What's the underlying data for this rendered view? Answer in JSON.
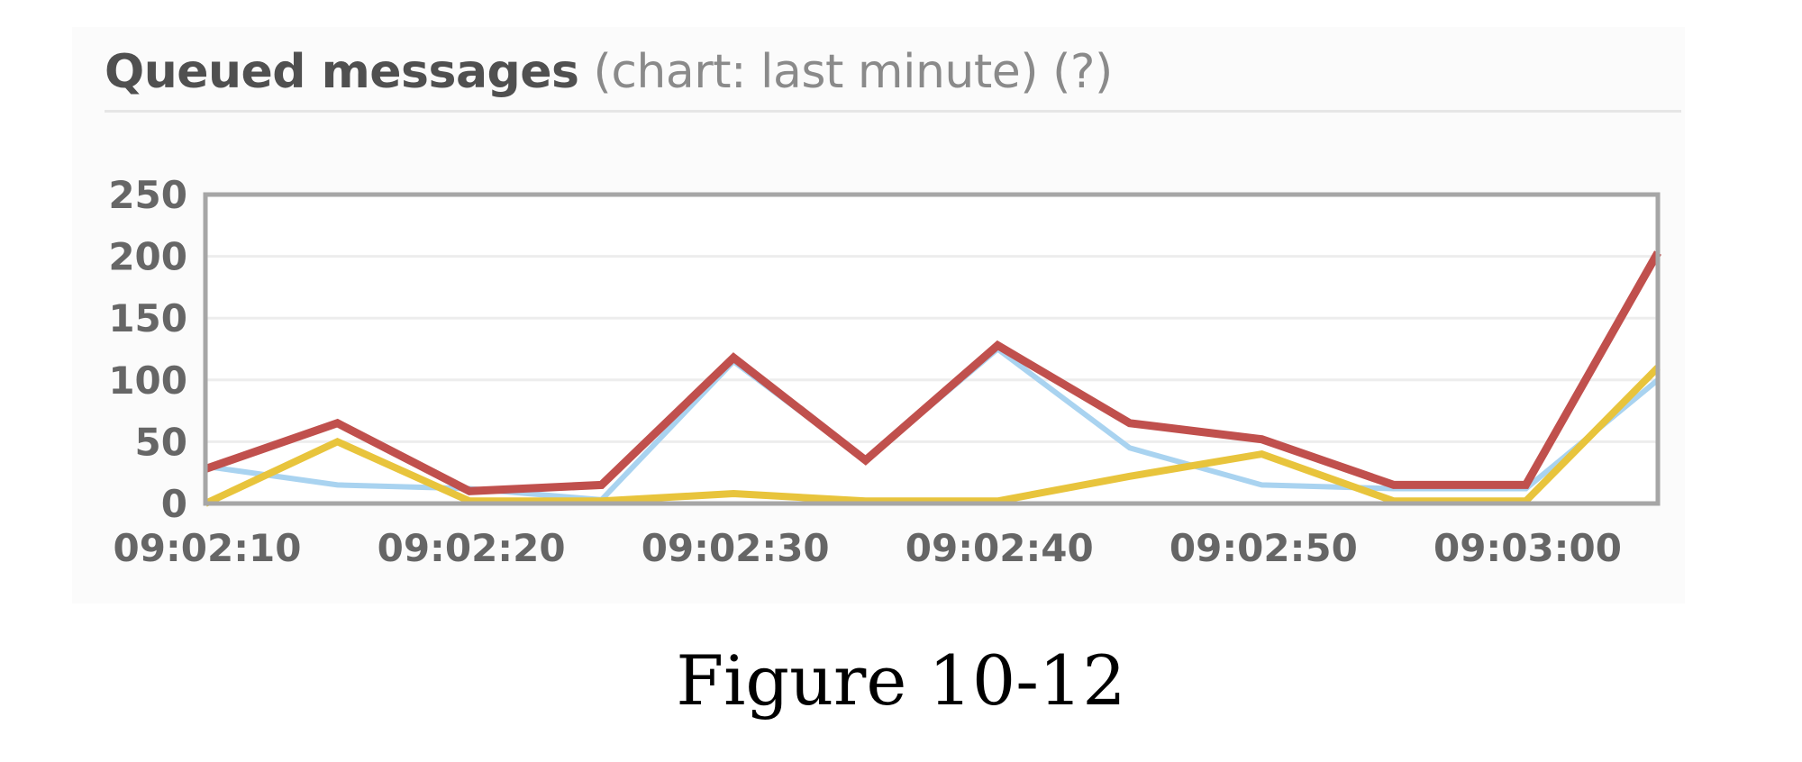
{
  "heading": {
    "main": "Queued messages",
    "sub": "(chart: last minute) (?)"
  },
  "caption": "Figure 10-12",
  "chart_data": {
    "type": "line",
    "title": "",
    "xlabel": "",
    "ylabel": "",
    "x": [
      "09:02:10",
      "09:02:15",
      "09:02:20",
      "09:02:25",
      "09:02:30",
      "09:02:35",
      "09:02:40",
      "09:02:45",
      "09:02:50",
      "09:02:55",
      "09:03:00",
      "09:03:05"
    ],
    "x_ticks": [
      "09:02:10",
      "09:02:20",
      "09:02:30",
      "09:02:40",
      "09:02:50",
      "09:03:00"
    ],
    "y_ticks": [
      0,
      50,
      100,
      150,
      200,
      250
    ],
    "ylim": [
      0,
      250
    ],
    "grid": true,
    "series": [
      {
        "color": "#a9d3f0",
        "values": [
          30,
          15,
          12,
          3,
          115,
          35,
          125,
          45,
          15,
          12,
          12,
          100
        ]
      },
      {
        "color": "#e8c43c",
        "values": [
          0,
          50,
          2,
          2,
          8,
          2,
          2,
          22,
          40,
          2,
          2,
          110
        ]
      },
      {
        "color": "#c0504d",
        "values": [
          28,
          65,
          10,
          15,
          118,
          35,
          128,
          65,
          52,
          15,
          15,
          203
        ]
      }
    ]
  }
}
